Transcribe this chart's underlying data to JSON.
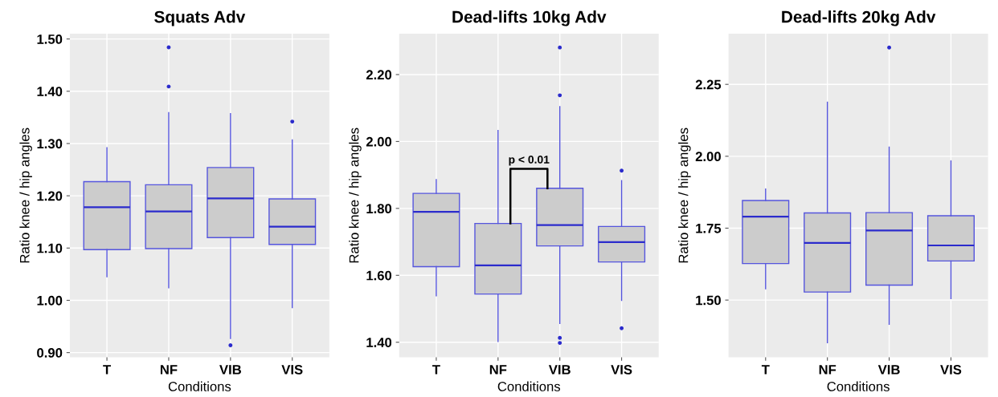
{
  "chart_data": [
    {
      "type": "box",
      "title": "Squats Adv",
      "xlabel": "Conditions",
      "ylabel": "Ratio knee / hip angles",
      "categories": [
        "T",
        "NF",
        "VIB",
        "VIS"
      ],
      "color": "#5555dd",
      "grid": true,
      "ylim": [
        0.891,
        1.51
      ],
      "yticks": [
        {
          "value": 0.9,
          "label": "0.90"
        },
        {
          "value": 1.0,
          "label": "1.00"
        },
        {
          "value": 1.1,
          "label": "1.10"
        },
        {
          "value": 1.2,
          "label": "1.20"
        },
        {
          "value": 1.3,
          "label": "1.30"
        },
        {
          "value": 1.4,
          "label": "1.40"
        },
        {
          "value": 1.5,
          "label": "1.50"
        }
      ],
      "boxes": [
        {
          "low": 1.045,
          "q1": 1.097,
          "median": 1.178,
          "q3": 1.227,
          "high": 1.292
        },
        {
          "low": 1.024,
          "q1": 1.099,
          "median": 1.17,
          "q3": 1.221,
          "high": 1.359,
          "outliers": [
            1.409,
            1.484
          ]
        },
        {
          "low": 0.927,
          "q1": 1.12,
          "median": 1.195,
          "q3": 1.254,
          "high": 1.357,
          "outliers": [
            0.914
          ]
        },
        {
          "low": 0.986,
          "q1": 1.107,
          "median": 1.141,
          "q3": 1.194,
          "high": 1.307,
          "outliers": [
            1.342
          ]
        }
      ]
    },
    {
      "type": "box",
      "title": "Dead-lifts 10kg Adv",
      "xlabel": "Conditions",
      "ylabel": "Ratio knee / hip angles",
      "categories": [
        "T",
        "NF",
        "VIB",
        "VIS"
      ],
      "color": "#5555dd",
      "grid": true,
      "ylim": [
        1.355,
        2.322
      ],
      "yticks": [
        {
          "value": 1.4,
          "label": "1.40"
        },
        {
          "value": 1.6,
          "label": "1.60"
        },
        {
          "value": 1.8,
          "label": "1.80"
        },
        {
          "value": 2.0,
          "label": "2.00"
        },
        {
          "value": 2.2,
          "label": "2.20"
        }
      ],
      "annotations": [
        "p < 0.01"
      ],
      "boxes": [
        {
          "low": 1.539,
          "q1": 1.626,
          "median": 1.79,
          "q3": 1.845,
          "high": 1.886
        },
        {
          "low": 1.402,
          "q1": 1.544,
          "median": 1.63,
          "q3": 1.755,
          "high": 2.033
        },
        {
          "low": 1.456,
          "q1": 1.688,
          "median": 1.75,
          "q3": 1.86,
          "high": 2.104,
          "outliers": [
            2.281,
            2.138,
            1.413,
            1.398
          ]
        },
        {
          "low": 1.525,
          "q1": 1.64,
          "median": 1.699,
          "q3": 1.746,
          "high": 1.883,
          "outliers": [
            1.913,
            1.442
          ]
        }
      ]
    },
    {
      "type": "box",
      "title": "Dead-lifts 20kg Adv",
      "xlabel": "Conditions",
      "ylabel": "Ratio knee / hip angles",
      "categories": [
        "T",
        "NF",
        "VIB",
        "VIS"
      ],
      "color": "#5555dd",
      "grid": true,
      "ylim": [
        1.301,
        2.426
      ],
      "yticks": [
        {
          "value": 1.5,
          "label": "1.50"
        },
        {
          "value": 1.75,
          "label": "1.75"
        },
        {
          "value": 2.0,
          "label": "2.00"
        },
        {
          "value": 2.25,
          "label": "2.25"
        }
      ],
      "boxes": [
        {
          "low": 1.539,
          "q1": 1.627,
          "median": 1.79,
          "q3": 1.846,
          "high": 1.886
        },
        {
          "low": 1.352,
          "q1": 1.528,
          "median": 1.699,
          "q3": 1.803,
          "high": 2.188
        },
        {
          "low": 1.416,
          "q1": 1.552,
          "median": 1.742,
          "q3": 1.804,
          "high": 2.032,
          "outliers": [
            2.378
          ]
        },
        {
          "low": 1.505,
          "q1": 1.636,
          "median": 1.69,
          "q3": 1.793,
          "high": 1.984
        }
      ]
    }
  ]
}
